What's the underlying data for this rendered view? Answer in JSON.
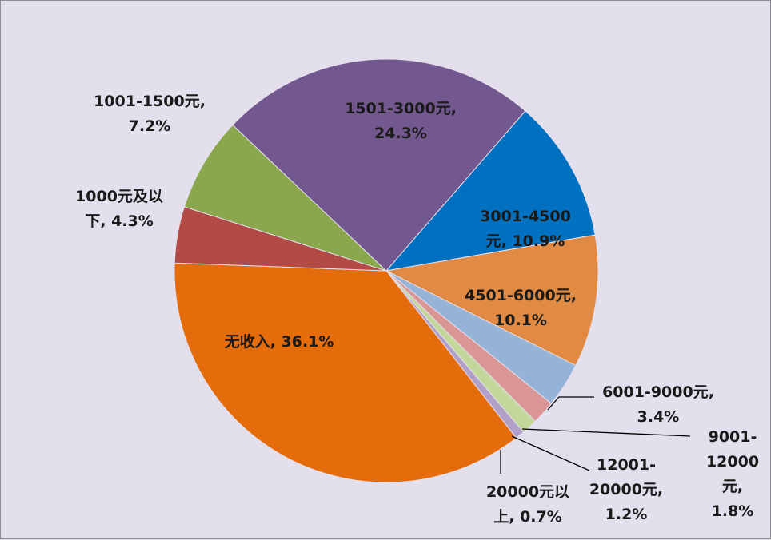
{
  "chart_data": {
    "type": "pie",
    "title": "",
    "slices": [
      {
        "label_lines": [
          "3001-4500",
          "元, 10.9%"
        ],
        "category": "3001-4500元",
        "value": 10.9,
        "color": "#0070c0"
      },
      {
        "label_lines": [
          "4501-6000元,",
          "10.1%"
        ],
        "category": "4501-6000元",
        "value": 10.1,
        "color": "#e08a43"
      },
      {
        "label_lines": [
          "6001-9000元,",
          "3.4%"
        ],
        "category": "6001-9000元",
        "value": 3.4,
        "color": "#95b3d7"
      },
      {
        "label_lines": [
          "9001-",
          "12000",
          "元,",
          "1.8%"
        ],
        "category": "9001-12000元",
        "value": 1.8,
        "color": "#da9694"
      },
      {
        "label_lines": [
          "12001-",
          "20000元,",
          "1.2%"
        ],
        "category": "12001-20000元",
        "value": 1.2,
        "color": "#c4d79b"
      },
      {
        "label_lines": [
          "20000元以",
          "上, 0.7%"
        ],
        "category": "20000元以上",
        "value": 0.7,
        "color": "#b1a0c7"
      },
      {
        "label_lines": [
          "无收入, 36.1%"
        ],
        "category": "无收入",
        "value": 36.1,
        "color": "#e46c0a"
      },
      {
        "label_lines": [
          "1000元及以",
          "下, 4.3%"
        ],
        "category": "1000元及以下",
        "value": 4.3,
        "color": "#b24b46"
      },
      {
        "label_lines": [
          "1001-1500元,",
          "7.2%"
        ],
        "category": "1001-1500元",
        "value": 7.2,
        "color": "#8aa74e"
      },
      {
        "label_lines": [
          "1501-3000元,",
          "24.3%"
        ],
        "category": "1501-3000元",
        "value": 24.3,
        "color": "#72588f"
      }
    ],
    "legend": "none",
    "label_style": "category, percentage"
  }
}
